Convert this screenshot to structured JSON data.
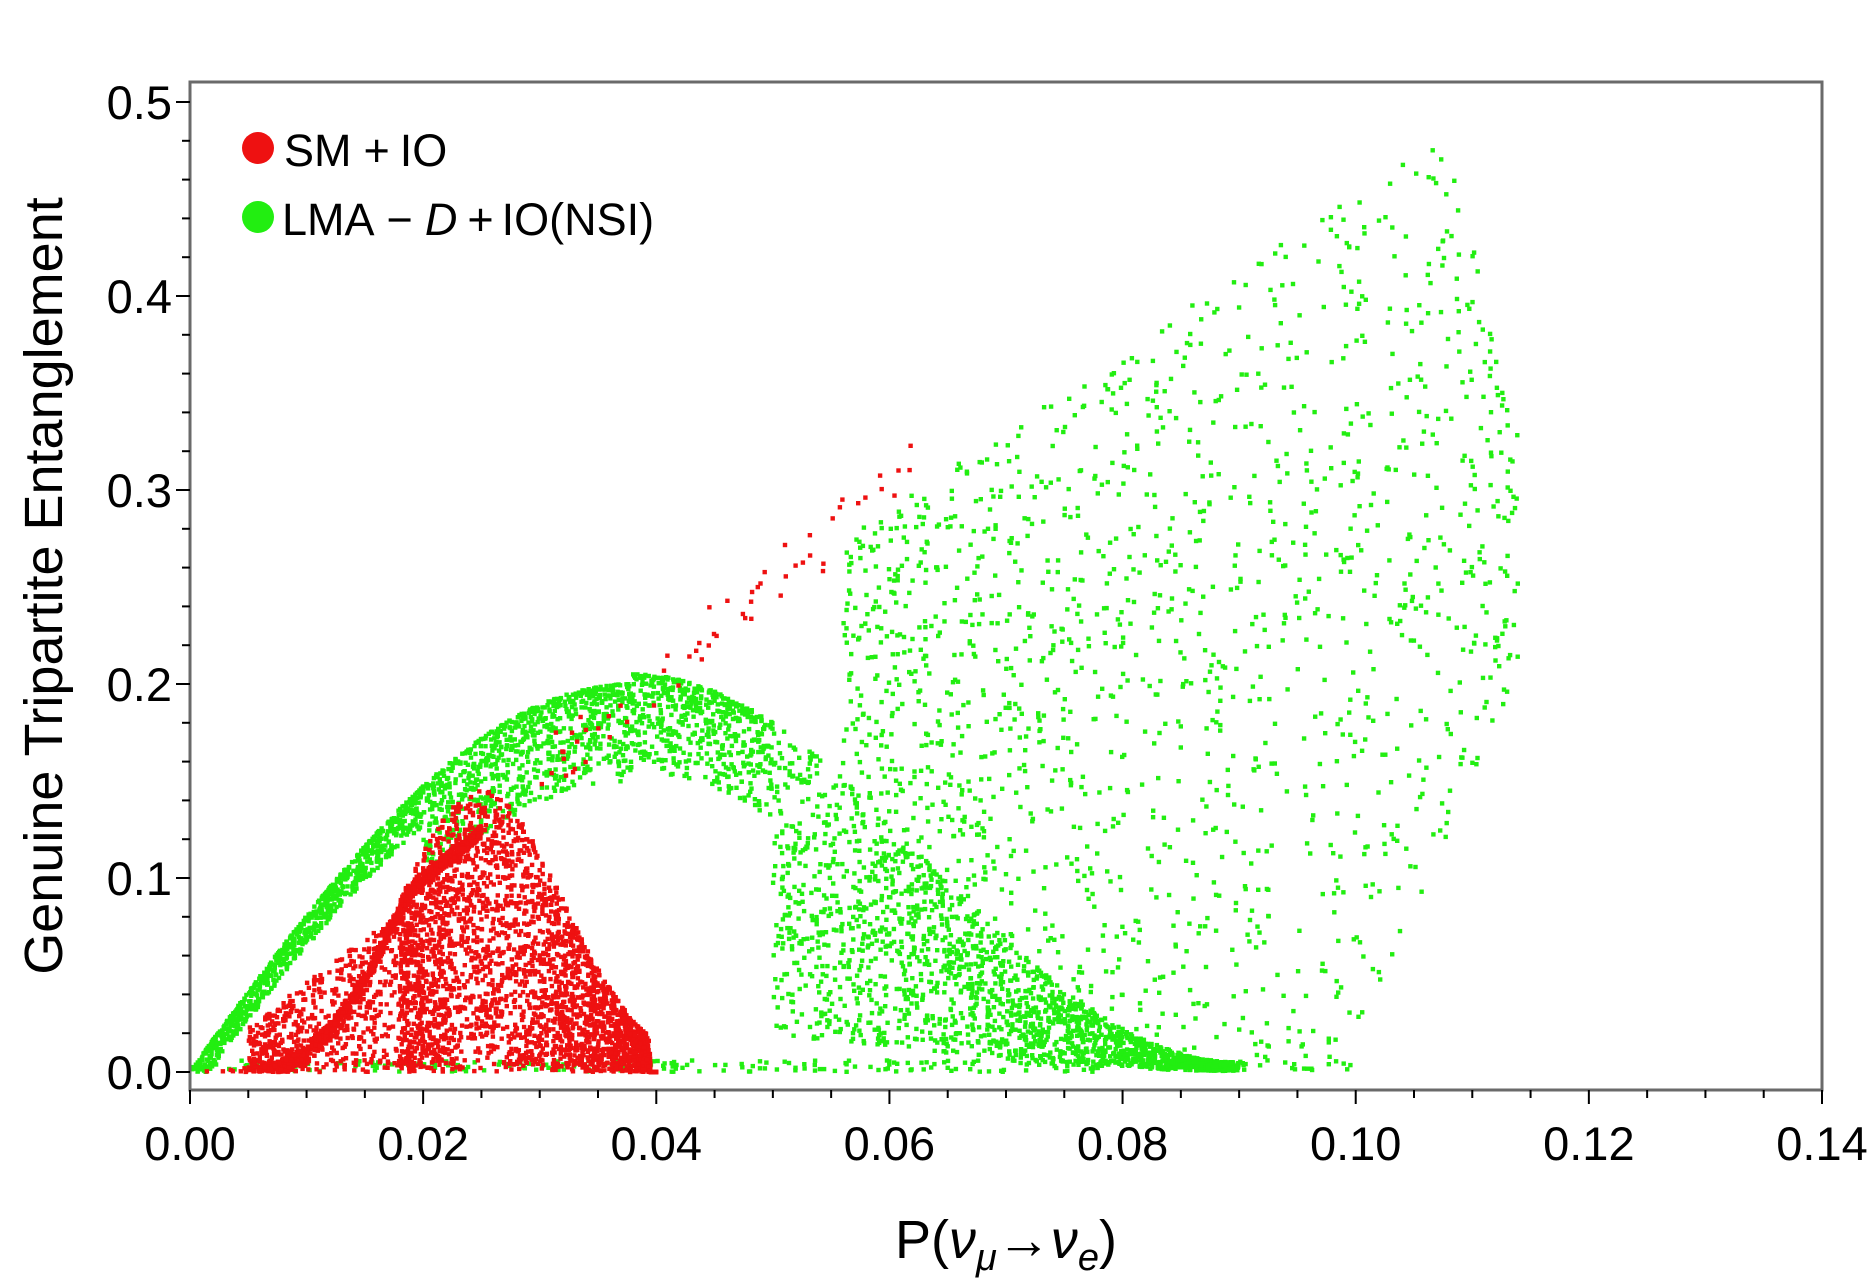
{
  "chart_data": {
    "type": "scatter",
    "title": "",
    "xlabel": "P(νμ→νe)",
    "xlabel_parts": {
      "prefix": "P(",
      "nu1": "ν",
      "sub1": "μ",
      "arrow": "→",
      "nu2": "ν",
      "sub2": "e",
      "suffix": ")"
    },
    "ylabel": "Genuine Tripartite Entanglement",
    "xlim": [
      0,
      0.14
    ],
    "ylim": [
      0,
      0.5
    ],
    "x_ticks": [
      "0.00",
      "0.02",
      "0.04",
      "0.06",
      "0.08",
      "0.10",
      "0.12",
      "0.14"
    ],
    "y_ticks": [
      "0.0",
      "0.1",
      "0.2",
      "0.3",
      "0.4",
      "0.5"
    ],
    "x_tick_values": [
      0,
      0.02,
      0.04,
      0.06,
      0.08,
      0.1,
      0.12,
      0.14
    ],
    "y_tick_values": [
      0,
      0.1,
      0.2,
      0.3,
      0.4,
      0.5
    ],
    "grid": false,
    "legend_position": "top-left",
    "series": [
      {
        "name": "SM+IO",
        "legend_label": {
          "a": "SM",
          "op": "+",
          "b": "IO"
        },
        "color": "#ee1111",
        "regions": [
          {
            "kind": "curve-band",
            "x0": 0.0,
            "x1": 0.025,
            "curve": "gauss",
            "peak": 0.145,
            "center": 0.025,
            "width": 0.014,
            "spread": 0.007,
            "count": 1400
          },
          {
            "kind": "fill",
            "x0": 0.018,
            "x1": 0.04,
            "count": 2600
          },
          {
            "kind": "fill-under",
            "x0": 0.005,
            "x1": 0.022,
            "count": 700
          },
          {
            "kind": "ridge",
            "x0": 0.03,
            "x1": 0.062,
            "ymin": 0.17,
            "ymax": 0.325,
            "count": 60
          }
        ]
      },
      {
        "name": "LMA-D+IO(NSI)",
        "legend_label": {
          "a": "LMA",
          "op1": "−",
          "d": "D",
          "op2": "+",
          "b": "IO(NSI)"
        },
        "color": "#22ee11",
        "regions": [
          {
            "kind": "upper-band",
            "x0": 0.0,
            "x1": 0.09,
            "peak_x": 0.038,
            "peak_y": 0.2,
            "band": 0.05,
            "count": 4200
          },
          {
            "kind": "sparse-wedge",
            "x0": 0.056,
            "x1": 0.114,
            "peak_x": 0.108,
            "peak_y": 0.485,
            "count": 1500
          },
          {
            "kind": "baseline",
            "x0": 0.0,
            "x1": 0.1,
            "count": 250
          }
        ]
      }
    ]
  }
}
